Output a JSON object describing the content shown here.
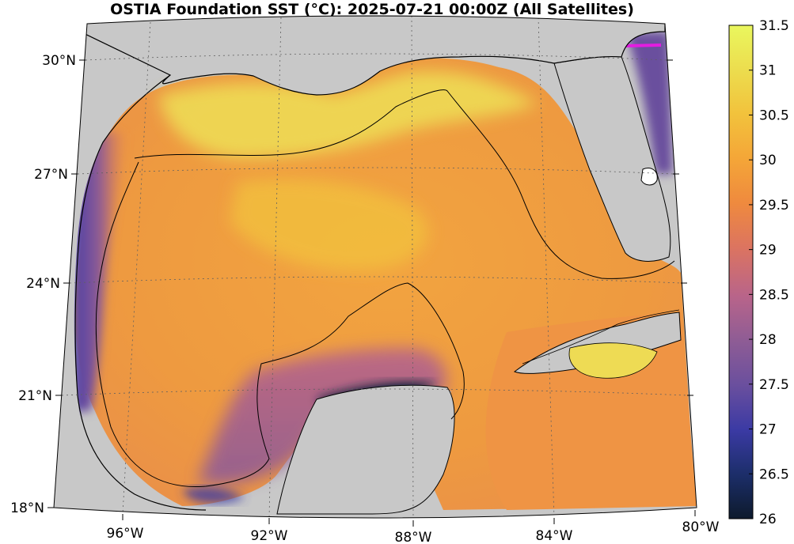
{
  "title": "OSTIA Foundation SST (°C): 2025-07-21 00:00Z (All Satellites)",
  "map": {
    "region": "Gulf of Mexico",
    "land_color": "#c8c8c8",
    "coastline_color": "#000000",
    "graticule_style": "dotted",
    "lat_labels": [
      "30°N",
      "27°N",
      "24°N",
      "21°N",
      "18°N"
    ],
    "lon_labels": [
      "96°W",
      "92°W",
      "88°W",
      "84°W",
      "80°W"
    ]
  },
  "colorbar": {
    "colormap": "thermal",
    "min": 26,
    "max": 31.5,
    "tick_labels": [
      "31.5",
      "31",
      "30.5",
      "30",
      "29.5",
      "29",
      "28.5",
      "28",
      "27.5",
      "27",
      "26.5",
      "26"
    ],
    "stops": [
      "#0d1a2c",
      "#1c2e6a",
      "#3b3aa4",
      "#6a4f9e",
      "#8e5c95",
      "#b8648a",
      "#dc7460",
      "#ef8a3e",
      "#f4a638",
      "#f2c23c",
      "#ecdd4e",
      "#eaf75e"
    ]
  }
}
